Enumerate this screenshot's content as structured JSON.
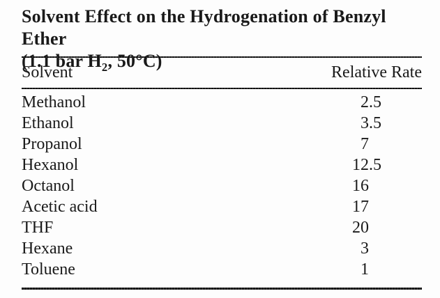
{
  "figure": {
    "title": {
      "line1": "Solvent Effect on the Hydrogenation of Benzyl Ether",
      "line2_prefix": "(1.1 bar H",
      "line2_sub": "2",
      "line2_suffix": ", 50°C)"
    },
    "table": {
      "columns": [
        "Solvent",
        "Relative Rate"
      ],
      "rows": [
        {
          "solvent": "Methanol",
          "rate": "2.5"
        },
        {
          "solvent": "Ethanol",
          "rate": "3.5"
        },
        {
          "solvent": "Propanol",
          "rate": "7"
        },
        {
          "solvent": "Hexanol",
          "rate": "12.5"
        },
        {
          "solvent": "Octanol",
          "rate": "16"
        },
        {
          "solvent": "Acetic acid",
          "rate": "17"
        },
        {
          "solvent": "THF",
          "rate": "20"
        },
        {
          "solvent": "Hexane",
          "rate": "3"
        },
        {
          "solvent": "Toluene",
          "rate": "1"
        }
      ]
    },
    "colors": {
      "background": "#fdfdfd",
      "text": "#1a1a1a",
      "rule": "#1c1c1c"
    }
  }
}
